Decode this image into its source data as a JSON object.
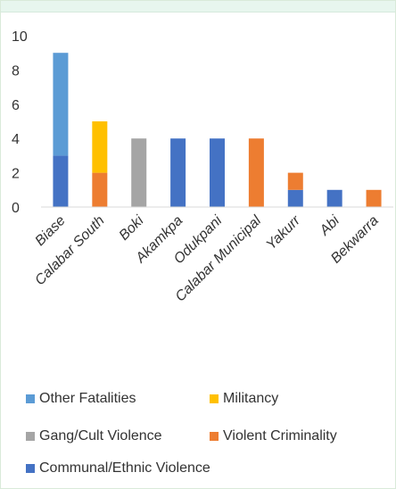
{
  "chart_data": {
    "type": "bar",
    "stacked": true,
    "categories": [
      "Biase",
      "Calabar South",
      "Boki",
      "Akamkpa",
      "Odukpani",
      "Calabar Municipal",
      "Yakurr",
      "Abi",
      "Bekwarra"
    ],
    "series": [
      {
        "name": "Communal/Ethnic Violence",
        "color": "#4472c4",
        "values": [
          3,
          0,
          0,
          4,
          4,
          0,
          1,
          1,
          0
        ]
      },
      {
        "name": "Violent Criminality",
        "color": "#ed7d31",
        "values": [
          0,
          2,
          0,
          0,
          0,
          4,
          1,
          0,
          1
        ]
      },
      {
        "name": "Gang/Cult Violence",
        "color": "#a5a5a5",
        "values": [
          0,
          0,
          4,
          0,
          0,
          0,
          0,
          0,
          0
        ]
      },
      {
        "name": "Militancy",
        "color": "#ffc000",
        "values": [
          0,
          3,
          0,
          0,
          0,
          0,
          0,
          0,
          0
        ]
      },
      {
        "name": "Other Fatalities",
        "color": "#5b9bd5",
        "values": [
          6,
          0,
          0,
          0,
          0,
          0,
          0,
          0,
          0
        ]
      }
    ],
    "y_ticks": [
      "0",
      "2",
      "4",
      "6",
      "8",
      "10"
    ],
    "ylim": [
      0,
      10
    ],
    "title": "",
    "xlabel": "",
    "ylabel": "",
    "grid": false,
    "legend_position": "bottom"
  },
  "legend": [
    {
      "label": "Other Fatalities",
      "color": "#5b9bd5"
    },
    {
      "label": "Militancy",
      "color": "#ffc000"
    },
    {
      "label": "Gang/Cult Violence",
      "color": "#a5a5a5"
    },
    {
      "label": "Violent Criminality",
      "color": "#ed7d31"
    },
    {
      "label": "Communal/Ethnic Violence",
      "color": "#4472c4"
    }
  ],
  "colors": {
    "top_band": "#e7f6ee",
    "axis": "#d9d9d9",
    "text": "#333333"
  }
}
